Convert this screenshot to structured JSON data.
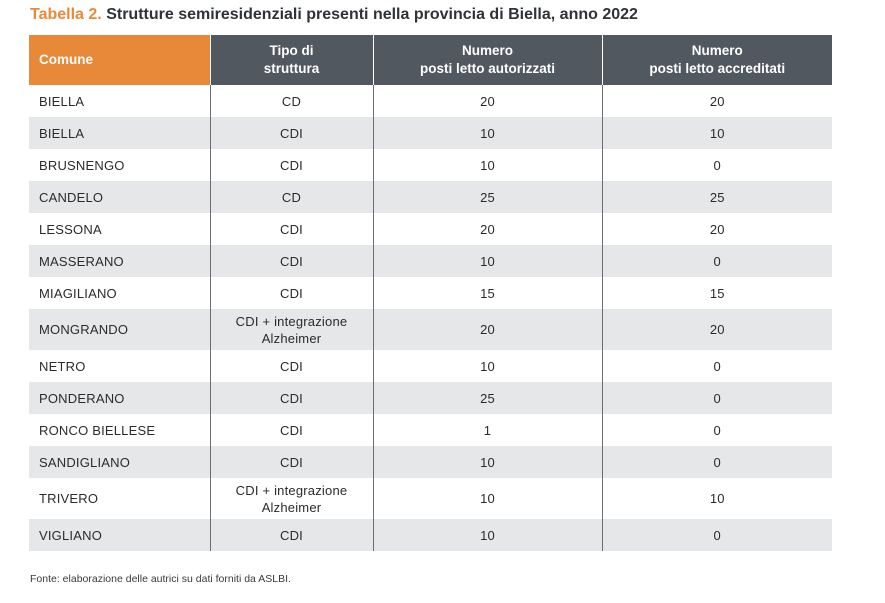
{
  "caption": {
    "label": "Tabella 2.",
    "title": "Strutture semiresidenziali presenti nella provincia di Biella, anno 2022"
  },
  "table": {
    "headers": {
      "comune": "Comune",
      "tipo_line1": "Tipo di",
      "tipo_line2": "struttura",
      "autorizzati_line1": "Numero",
      "autorizzati_line2": "posti letto autorizzati",
      "accreditati_line1": "Numero",
      "accreditati_line2": "posti letto accreditati"
    },
    "rows": [
      {
        "comune": "BIELLA",
        "tipo": [
          "CD"
        ],
        "autorizzati": "20",
        "accreditati": "20"
      },
      {
        "comune": "BIELLA",
        "tipo": [
          "CDI"
        ],
        "autorizzati": "10",
        "accreditati": "10"
      },
      {
        "comune": "BRUSNENGO",
        "tipo": [
          "CDI"
        ],
        "autorizzati": "10",
        "accreditati": "0"
      },
      {
        "comune": "CANDELO",
        "tipo": [
          "CD"
        ],
        "autorizzati": "25",
        "accreditati": "25"
      },
      {
        "comune": "LESSONA",
        "tipo": [
          "CDI"
        ],
        "autorizzati": "20",
        "accreditati": "20"
      },
      {
        "comune": "MASSERANO",
        "tipo": [
          "CDI"
        ],
        "autorizzati": "10",
        "accreditati": "0"
      },
      {
        "comune": "MIAGILIANO",
        "tipo": [
          "CDI"
        ],
        "autorizzati": "15",
        "accreditati": "15"
      },
      {
        "comune": "MONGRANDO",
        "tipo": [
          "CDI + integrazione",
          "Alzheimer"
        ],
        "autorizzati": "20",
        "accreditati": "20"
      },
      {
        "comune": "NETRO",
        "tipo": [
          "CDI"
        ],
        "autorizzati": "10",
        "accreditati": "0"
      },
      {
        "comune": "PONDERANO",
        "tipo": [
          "CDI"
        ],
        "autorizzati": "25",
        "accreditati": "0"
      },
      {
        "comune": "RONCO BIELLESE",
        "tipo": [
          "CDI"
        ],
        "autorizzati": "1",
        "accreditati": "0"
      },
      {
        "comune": "SANDIGLIANO",
        "tipo": [
          "CDI"
        ],
        "autorizzati": "10",
        "accreditati": "0"
      },
      {
        "comune": "TRIVERO",
        "tipo": [
          "CDI + integrazione",
          "Alzheimer"
        ],
        "autorizzati": "10",
        "accreditati": "10"
      },
      {
        "comune": "VIGLIANO",
        "tipo": [
          "CDI"
        ],
        "autorizzati": "10",
        "accreditati": "0"
      }
    ]
  },
  "footnote": "Fonte: elaborazione delle autrici su dati forniti da ASLBI.",
  "colors": {
    "accent_orange": "#e8893a",
    "header_gray": "#525860",
    "row_shade": "#e6e7e8"
  }
}
